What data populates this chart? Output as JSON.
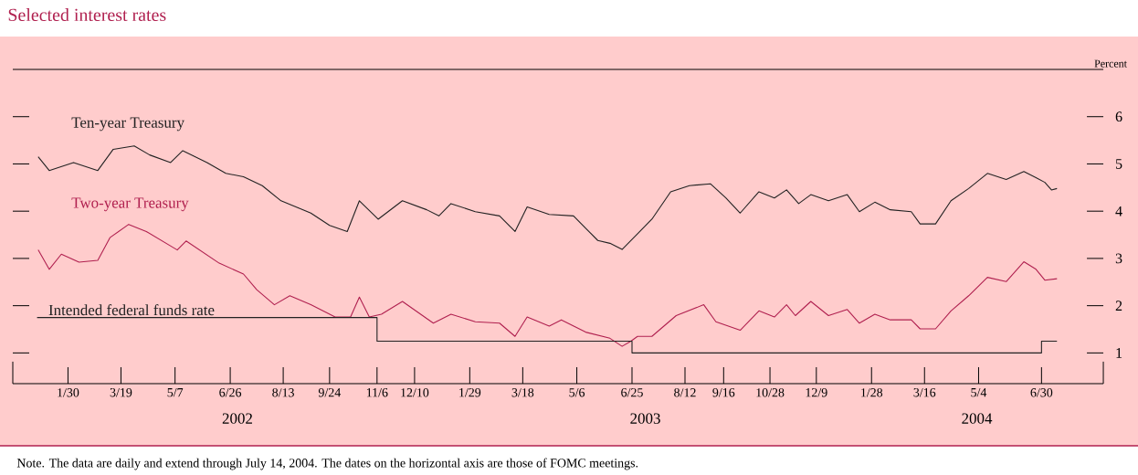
{
  "chart_data": {
    "type": "line",
    "title": "Selected interest rates",
    "ylabel": "Percent",
    "xlim": [
      "2001-12-11",
      "2004-08-25"
    ],
    "ylim": [
      0.35,
      7
    ],
    "yticks": [
      1,
      2,
      3,
      4,
      5,
      6
    ],
    "xticks": [
      {
        "value": "2002-01-30",
        "label": "1/30"
      },
      {
        "value": "2002-03-19",
        "label": "3/19"
      },
      {
        "value": "2002-05-07",
        "label": "5/7"
      },
      {
        "value": "2002-06-26",
        "label": "6/26"
      },
      {
        "value": "2002-08-13",
        "label": "8/13"
      },
      {
        "value": "2002-09-24",
        "label": "9/24"
      },
      {
        "value": "2002-11-06",
        "label": "11/6"
      },
      {
        "value": "2002-12-10",
        "label": "12/10"
      },
      {
        "value": "2003-01-29",
        "label": "1/29"
      },
      {
        "value": "2003-03-18",
        "label": "3/18"
      },
      {
        "value": "2003-05-06",
        "label": "5/6"
      },
      {
        "value": "2003-06-25",
        "label": "6/25"
      },
      {
        "value": "2003-08-12",
        "label": "8/12"
      },
      {
        "value": "2003-09-16",
        "label": "9/16"
      },
      {
        "value": "2003-10-28",
        "label": "10/28"
      },
      {
        "value": "2003-12-09",
        "label": "12/9"
      },
      {
        "value": "2004-01-28",
        "label": "1/28"
      },
      {
        "value": "2004-03-16",
        "label": "3/16"
      },
      {
        "value": "2004-05-04",
        "label": "5/4"
      },
      {
        "value": "2004-06-30",
        "label": "6/30"
      }
    ],
    "annotations": [
      "2002",
      "2003",
      "2004",
      "Note. The data are daily and extend through July 14, 2004. The dates on the horizontal axis are those of FOMC meetings."
    ],
    "series": [
      {
        "name": "Ten-year Treasury",
        "color": "#222222",
        "x": [
          "2002-01-03",
          "2002-01-13",
          "2002-02-04",
          "2002-02-26",
          "2002-03-12",
          "2002-03-31",
          "2002-04-14",
          "2002-05-03",
          "2002-05-14",
          "2002-06-05",
          "2002-06-22",
          "2002-07-08",
          "2002-07-25",
          "2002-08-11",
          "2002-09-07",
          "2002-09-24",
          "2002-10-10",
          "2002-10-21",
          "2002-11-07",
          "2002-11-29",
          "2002-12-21",
          "2003-01-01",
          "2003-01-12",
          "2003-02-03",
          "2003-02-25",
          "2003-03-11",
          "2003-03-22",
          "2003-04-11",
          "2003-05-03",
          "2003-05-14",
          "2003-05-25",
          "2003-06-05",
          "2003-06-16",
          "2003-06-27",
          "2003-07-13",
          "2003-07-30",
          "2003-08-16",
          "2003-09-04",
          "2003-09-18",
          "2003-10-01",
          "2003-10-18",
          "2003-11-01",
          "2003-11-12",
          "2003-11-23",
          "2003-12-04",
          "2003-12-20",
          "2004-01-06",
          "2004-01-17",
          "2004-01-31",
          "2004-02-14",
          "2004-03-04",
          "2004-03-12",
          "2004-03-26",
          "2004-04-09",
          "2004-04-25",
          "2004-05-12",
          "2004-05-29",
          "2004-06-14",
          "2004-06-25",
          "2004-07-03",
          "2004-07-09",
          "2004-07-14"
        ],
        "values": [
          5.15,
          4.86,
          5.03,
          4.86,
          5.31,
          5.38,
          5.19,
          5.03,
          5.28,
          5.03,
          4.8,
          4.73,
          4.54,
          4.22,
          3.96,
          3.7,
          3.57,
          4.22,
          3.83,
          4.22,
          4.03,
          3.9,
          4.16,
          3.99,
          3.9,
          3.57,
          4.09,
          3.93,
          3.9,
          3.64,
          3.38,
          3.32,
          3.19,
          3.45,
          3.83,
          4.41,
          4.54,
          4.58,
          4.28,
          3.96,
          4.41,
          4.28,
          4.45,
          4.16,
          4.35,
          4.22,
          4.35,
          3.99,
          4.19,
          4.03,
          3.99,
          3.73,
          3.73,
          4.22,
          4.48,
          4.8,
          4.67,
          4.84,
          4.71,
          4.61,
          4.45,
          4.48
        ]
      },
      {
        "name": "Two-year Treasury",
        "color": "#b0204f",
        "x": [
          "2002-01-03",
          "2002-01-13",
          "2002-01-24",
          "2002-02-09",
          "2002-02-26",
          "2002-03-09",
          "2002-03-26",
          "2002-04-11",
          "2002-05-09",
          "2002-05-17",
          "2002-06-16",
          "2002-07-08",
          "2002-07-20",
          "2002-08-05",
          "2002-08-19",
          "2002-09-07",
          "2002-09-29",
          "2002-10-13",
          "2002-10-21",
          "2002-10-30",
          "2002-11-10",
          "2002-11-29",
          "2002-12-27",
          "2003-01-12",
          "2003-02-03",
          "2003-02-25",
          "2003-03-11",
          "2003-03-22",
          "2003-04-11",
          "2003-04-22",
          "2003-05-14",
          "2003-06-05",
          "2003-06-16",
          "2003-06-24",
          "2003-06-30",
          "2003-07-13",
          "2003-08-04",
          "2003-08-29",
          "2003-09-09",
          "2003-10-01",
          "2003-10-18",
          "2003-11-01",
          "2003-11-12",
          "2003-11-20",
          "2003-12-04",
          "2003-12-20",
          "2004-01-06",
          "2004-01-17",
          "2004-01-31",
          "2004-02-14",
          "2004-03-04",
          "2004-03-12",
          "2004-03-26",
          "2004-04-09",
          "2004-04-25",
          "2004-05-12",
          "2004-05-29",
          "2004-06-14",
          "2004-06-25",
          "2004-07-03",
          "2004-07-14"
        ],
        "values": [
          3.18,
          2.77,
          3.09,
          2.92,
          2.96,
          3.44,
          3.72,
          3.57,
          3.18,
          3.37,
          2.9,
          2.67,
          2.34,
          2.02,
          2.21,
          2.02,
          1.76,
          1.76,
          2.18,
          1.76,
          1.82,
          2.09,
          1.63,
          1.82,
          1.66,
          1.63,
          1.35,
          1.76,
          1.57,
          1.7,
          1.44,
          1.31,
          1.14,
          1.25,
          1.35,
          1.35,
          1.79,
          2.02,
          1.66,
          1.48,
          1.89,
          1.76,
          2.02,
          1.79,
          2.09,
          1.79,
          1.92,
          1.63,
          1.82,
          1.7,
          1.7,
          1.51,
          1.51,
          1.89,
          2.21,
          2.6,
          2.51,
          2.93,
          2.77,
          2.54,
          2.57
        ]
      },
      {
        "name": "Intended federal funds rate",
        "color": "#222222",
        "type": "step",
        "x": [
          "2002-01-02",
          "2002-11-06",
          "2003-06-25",
          "2004-06-30",
          "2004-07-14"
        ],
        "values": [
          1.75,
          1.25,
          1.0,
          1.25,
          1.25
        ]
      }
    ]
  }
}
